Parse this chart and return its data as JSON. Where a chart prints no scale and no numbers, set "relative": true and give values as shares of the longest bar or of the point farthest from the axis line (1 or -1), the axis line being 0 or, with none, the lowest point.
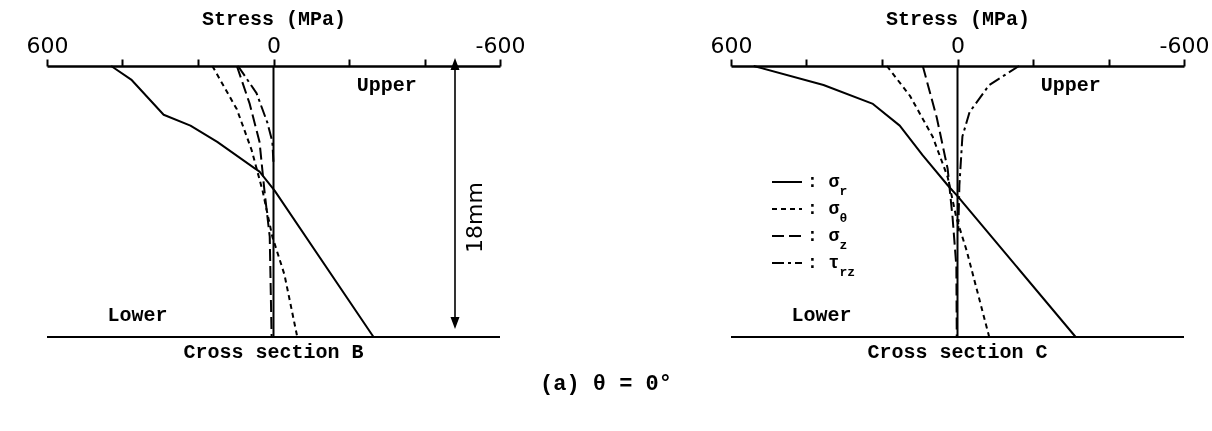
{
  "chart_data": [
    {
      "type": "line",
      "title": "Cross section B",
      "xlabel": "Stress (MPa)",
      "xlim": [
        600,
        -600
      ],
      "relative": true,
      "tick_labels": "x",
      "legend": false,
      "xticks": [
        600,
        {
          "value": 400,
          "label": null
        },
        {
          "value": 200,
          "label": null
        },
        0,
        {
          "value": -200,
          "label": null
        },
        {
          "value": -400,
          "label": null
        },
        -600
      ],
      "ref_lines": [
        {
          "axis": "x",
          "value": 0
        }
      ],
      "annotations": [
        "18mm",
        "Upper",
        "Lower",
        "(a)  θ = 0°"
      ],
      "series": [
        {
          "color": "#000000",
          "line_style": "solid",
          "x": [
            430,
            377,
            291,
            220,
            149,
            37,
            -3,
            -265
          ],
          "values": [
            0,
            -0.05,
            -0.18,
            -0.22,
            -0.28,
            -0.39,
            -0.46,
            -1
          ]
        },
        {
          "color": "#000000",
          "line_style": "dotted",
          "x": [
            162,
            97,
            58,
            29,
            3,
            -29,
            -63
          ],
          "values": [
            0,
            -0.16,
            -0.31,
            -0.46,
            -0.63,
            -0.77,
            -1
          ]
        },
        {
          "color": "#000000",
          "line_style": "dashed",
          "x": [
            97,
            63,
            37,
            24,
            10,
            5
          ],
          "values": [
            0,
            -0.14,
            -0.28,
            -0.46,
            -0.63,
            -1
          ]
        },
        {
          "color": "#000000",
          "line_style": "dashdot",
          "x": [
            94,
            45,
            16,
            3,
            0
          ],
          "values": [
            0,
            -0.1,
            -0.21,
            -0.28,
            -0.36
          ]
        }
      ]
    },
    {
      "type": "line",
      "title": "Cross section C",
      "xlabel": "Stress (MPa)",
      "xlim": [
        600,
        -600
      ],
      "relative": true,
      "tick_labels": "x",
      "legend": "left",
      "xticks": [
        600,
        {
          "value": 400,
          "label": null
        },
        {
          "value": 200,
          "label": null
        },
        0,
        {
          "value": -200,
          "label": null
        },
        {
          "value": -400,
          "label": null
        },
        -600
      ],
      "ref_lines": [
        {
          "axis": "x",
          "value": 0
        }
      ],
      "annotations": [
        "Upper",
        "Lower"
      ],
      "series": [
        {
          "name": ": σ$_{r}$",
          "color": "#000000",
          "line_style": "solid",
          "x": [
            540,
            355,
            224,
            153,
            92,
            26,
            0,
            -313
          ],
          "values": [
            0,
            -0.07,
            -0.14,
            -0.22,
            -0.33,
            -0.44,
            -0.48,
            -1
          ]
        },
        {
          "name": ": σ$_{θ}$",
          "color": "#000000",
          "line_style": "dotted",
          "x": [
            187,
            126,
            66,
            26,
            3,
            -24,
            -84
          ],
          "values": [
            0,
            -0.11,
            -0.26,
            -0.41,
            -0.56,
            -0.68,
            -1
          ]
        },
        {
          "name": ": σ$_{z}$",
          "color": "#000000",
          "line_style": "dashed",
          "x": [
            92,
            55,
            26,
            13,
            3,
            2
          ],
          "values": [
            0,
            -0.19,
            -0.38,
            -0.56,
            -0.74,
            -1
          ]
        },
        {
          "name": ": τ$_{rz}$",
          "color": "#000000",
          "line_style": "dashdot",
          "x": [
            -163,
            -84,
            -32,
            -13,
            -5,
            -2
          ],
          "values": [
            0,
            -0.07,
            -0.17,
            -0.26,
            -0.44,
            -0.61
          ]
        }
      ]
    }
  ]
}
